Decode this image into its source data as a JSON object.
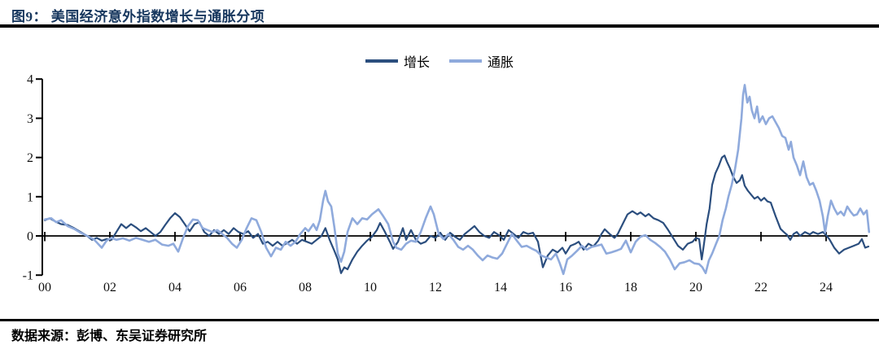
{
  "figure": {
    "title": "图9： 美国经济意外指数增长与通胀分项",
    "source": "数据来源：彭博、东吴证券研究所"
  },
  "colors": {
    "title": "#17375E",
    "growth": "#2B4E7E",
    "inflation": "#8FAADC",
    "axis": "#000000"
  },
  "chart_data": {
    "type": "line",
    "title": "美国经济意外指数增长与通胀分项",
    "legend": [
      "增长",
      "通胀"
    ],
    "legend_position": "top-center",
    "grid": false,
    "xlabel": "",
    "ylabel": "",
    "ylim": [
      -1,
      4
    ],
    "x_range": [
      2000,
      2025.4
    ],
    "y_ticks": [
      4,
      3,
      2,
      1,
      0,
      -1
    ],
    "x_ticks": [
      "00",
      "02",
      "04",
      "06",
      "08",
      "10",
      "12",
      "14",
      "16",
      "18",
      "20",
      "22",
      "24"
    ],
    "x_tick_years": [
      2000,
      2002,
      2004,
      2006,
      2008,
      2010,
      2012,
      2014,
      2016,
      2018,
      2020,
      2022,
      2024
    ],
    "series": [
      {
        "name": "增长",
        "color": "#2B4E7E",
        "x": [
          2000.0,
          2000.15,
          2000.3,
          2000.5,
          2000.7,
          2000.9,
          2001.1,
          2001.3,
          2001.45,
          2001.6,
          2001.75,
          2001.9,
          2002.05,
          2002.2,
          2002.35,
          2002.5,
          2002.65,
          2002.8,
          2002.95,
          2003.1,
          2003.25,
          2003.4,
          2003.55,
          2003.7,
          2003.85,
          2004.0,
          2004.15,
          2004.3,
          2004.45,
          2004.6,
          2004.75,
          2004.9,
          2005.05,
          2005.2,
          2005.35,
          2005.5,
          2005.65,
          2005.8,
          2005.95,
          2006.1,
          2006.25,
          2006.4,
          2006.55,
          2006.7,
          2006.85,
          2007.0,
          2007.15,
          2007.3,
          2007.45,
          2007.6,
          2007.75,
          2007.9,
          2008.05,
          2008.2,
          2008.35,
          2008.5,
          2008.62,
          2008.75,
          2008.88,
          2009.0,
          2009.1,
          2009.2,
          2009.3,
          2009.45,
          2009.6,
          2009.75,
          2009.9,
          2010.05,
          2010.2,
          2010.3,
          2010.45,
          2010.6,
          2010.7,
          2010.85,
          2011.0,
          2011.1,
          2011.25,
          2011.4,
          2011.55,
          2011.7,
          2011.85,
          2012.0,
          2012.15,
          2012.3,
          2012.45,
          2012.6,
          2012.75,
          2012.9,
          2013.05,
          2013.2,
          2013.35,
          2013.5,
          2013.65,
          2013.8,
          2013.95,
          2014.1,
          2014.25,
          2014.4,
          2014.55,
          2014.7,
          2014.85,
          2015.0,
          2015.15,
          2015.3,
          2015.45,
          2015.6,
          2015.75,
          2015.9,
          2016.0,
          2016.15,
          2016.3,
          2016.4,
          2016.55,
          2016.7,
          2016.85,
          2017.0,
          2017.1,
          2017.2,
          2017.35,
          2017.5,
          2017.6,
          2017.75,
          2017.9,
          2018.05,
          2018.2,
          2018.3,
          2018.45,
          2018.55,
          2018.7,
          2018.85,
          2019.0,
          2019.15,
          2019.3,
          2019.45,
          2019.6,
          2019.75,
          2019.9,
          2020.0,
          2020.1,
          2020.18,
          2020.25,
          2020.33,
          2020.42,
          2020.5,
          2020.6,
          2020.7,
          2020.8,
          2020.88,
          2020.95,
          2021.05,
          2021.15,
          2021.25,
          2021.35,
          2021.42,
          2021.5,
          2021.6,
          2021.7,
          2021.8,
          2021.9,
          2022.0,
          2022.1,
          2022.2,
          2022.3,
          2022.45,
          2022.6,
          2022.7,
          2022.8,
          2022.9,
          2023.0,
          2023.1,
          2023.2,
          2023.35,
          2023.5,
          2023.6,
          2023.75,
          2023.9,
          2024.0,
          2024.1,
          2024.25,
          2024.4,
          2024.55,
          2024.7,
          2024.85,
          2025.0,
          2025.1,
          2025.2,
          2025.3
        ],
        "y": [
          0.4,
          0.45,
          0.38,
          0.3,
          0.28,
          0.2,
          0.1,
          0.0,
          -0.1,
          -0.05,
          -0.12,
          -0.08,
          -0.1,
          0.1,
          0.3,
          0.2,
          0.3,
          0.22,
          0.12,
          0.2,
          0.1,
          0.0,
          0.1,
          0.28,
          0.45,
          0.58,
          0.48,
          0.3,
          0.12,
          0.3,
          0.35,
          0.1,
          0.0,
          0.15,
          0.05,
          0.15,
          0.05,
          0.2,
          0.1,
          0.05,
          0.12,
          -0.05,
          0.05,
          -0.2,
          -0.15,
          -0.25,
          -0.15,
          -0.25,
          -0.18,
          -0.1,
          -0.2,
          -0.1,
          -0.15,
          -0.2,
          -0.1,
          0.0,
          0.2,
          -0.1,
          -0.35,
          -0.6,
          -0.95,
          -0.8,
          -0.85,
          -0.6,
          -0.4,
          -0.25,
          -0.12,
          -0.02,
          0.15,
          0.33,
          0.1,
          -0.15,
          -0.33,
          -0.15,
          0.2,
          -0.1,
          0.15,
          -0.1,
          -0.2,
          -0.15,
          0.0,
          -0.05,
          0.08,
          -0.1,
          0.08,
          -0.02,
          -0.1,
          0.05,
          0.15,
          0.25,
          0.1,
          0.0,
          -0.05,
          0.1,
          0.02,
          -0.1,
          0.15,
          0.05,
          -0.05,
          0.1,
          0.05,
          0.08,
          -0.15,
          -0.8,
          -0.5,
          -0.35,
          -0.42,
          -0.3,
          -0.45,
          -0.25,
          -0.2,
          -0.15,
          -0.35,
          -0.2,
          -0.27,
          -0.12,
          0.05,
          0.17,
          0.05,
          -0.05,
          0.05,
          0.3,
          0.55,
          0.63,
          0.55,
          0.6,
          0.5,
          0.56,
          0.45,
          0.4,
          0.33,
          0.15,
          -0.05,
          -0.25,
          -0.35,
          -0.2,
          -0.15,
          -0.05,
          -0.08,
          -0.6,
          -0.2,
          0.3,
          0.7,
          1.3,
          1.6,
          1.78,
          2.0,
          2.05,
          1.9,
          1.72,
          1.5,
          1.35,
          1.42,
          1.55,
          1.28,
          1.15,
          1.05,
          0.95,
          1.0,
          0.9,
          0.97,
          0.88,
          0.85,
          0.5,
          0.18,
          0.1,
          0.03,
          -0.1,
          0.05,
          0.1,
          0.0,
          0.1,
          0.04,
          0.1,
          0.05,
          0.1,
          0.02,
          -0.08,
          -0.3,
          -0.45,
          -0.35,
          -0.3,
          -0.25,
          -0.2,
          -0.08,
          -0.3,
          -0.27
        ]
      },
      {
        "name": "通胀",
        "color": "#8FAADC",
        "x": [
          2000.0,
          2000.2,
          2000.35,
          2000.5,
          2000.7,
          2000.9,
          2001.1,
          2001.3,
          2001.5,
          2001.75,
          2001.9,
          2002.05,
          2002.2,
          2002.4,
          2002.6,
          2002.8,
          2003.0,
          2003.2,
          2003.4,
          2003.6,
          2003.8,
          2003.95,
          2004.1,
          2004.25,
          2004.4,
          2004.55,
          2004.7,
          2004.85,
          2005.0,
          2005.15,
          2005.3,
          2005.45,
          2005.6,
          2005.75,
          2005.9,
          2006.05,
          2006.2,
          2006.35,
          2006.5,
          2006.65,
          2006.8,
          2006.95,
          2007.1,
          2007.25,
          2007.4,
          2007.55,
          2007.7,
          2007.85,
          2008.0,
          2008.1,
          2008.25,
          2008.35,
          2008.45,
          2008.55,
          2008.62,
          2008.7,
          2008.8,
          2008.9,
          2009.0,
          2009.1,
          2009.2,
          2009.3,
          2009.45,
          2009.6,
          2009.75,
          2009.9,
          2010.05,
          2010.25,
          2010.4,
          2010.55,
          2010.7,
          2010.8,
          2010.95,
          2011.1,
          2011.25,
          2011.4,
          2011.55,
          2011.7,
          2011.85,
          2011.95,
          2012.1,
          2012.25,
          2012.4,
          2012.55,
          2012.7,
          2012.85,
          2013.0,
          2013.15,
          2013.3,
          2013.45,
          2013.6,
          2013.75,
          2013.9,
          2014.05,
          2014.2,
          2014.35,
          2014.5,
          2014.65,
          2014.8,
          2014.95,
          2015.1,
          2015.25,
          2015.4,
          2015.55,
          2015.7,
          2015.82,
          2015.93,
          2016.05,
          2016.2,
          2016.35,
          2016.5,
          2016.65,
          2016.8,
          2016.95,
          2017.1,
          2017.25,
          2017.4,
          2017.55,
          2017.7,
          2017.85,
          2018.0,
          2018.15,
          2018.3,
          2018.45,
          2018.6,
          2018.75,
          2018.9,
          2019.05,
          2019.2,
          2019.35,
          2019.5,
          2019.65,
          2019.8,
          2019.95,
          2020.1,
          2020.2,
          2020.3,
          2020.4,
          2020.5,
          2020.62,
          2020.72,
          2020.82,
          2020.92,
          2021.0,
          2021.1,
          2021.2,
          2021.3,
          2021.4,
          2021.45,
          2021.5,
          2021.58,
          2021.65,
          2021.72,
          2021.8,
          2021.88,
          2021.95,
          2022.05,
          2022.15,
          2022.25,
          2022.35,
          2022.45,
          2022.55,
          2022.65,
          2022.75,
          2022.85,
          2022.92,
          2023.0,
          2023.1,
          2023.2,
          2023.3,
          2023.4,
          2023.5,
          2023.6,
          2023.7,
          2023.8,
          2023.9,
          2023.97,
          2024.05,
          2024.15,
          2024.25,
          2024.35,
          2024.45,
          2024.55,
          2024.65,
          2024.75,
          2024.85,
          2024.95,
          2025.05,
          2025.15,
          2025.25,
          2025.32
        ],
        "y": [
          0.42,
          0.45,
          0.35,
          0.4,
          0.25,
          0.18,
          0.08,
          0.0,
          -0.08,
          -0.3,
          -0.12,
          -0.05,
          -0.1,
          -0.06,
          -0.12,
          -0.05,
          -0.1,
          -0.15,
          -0.1,
          -0.22,
          -0.25,
          -0.2,
          -0.4,
          -0.05,
          0.25,
          0.42,
          0.4,
          0.2,
          0.15,
          0.1,
          0.15,
          0.05,
          -0.05,
          -0.2,
          -0.3,
          -0.1,
          0.2,
          0.45,
          0.4,
          0.1,
          -0.3,
          -0.52,
          -0.3,
          -0.35,
          -0.15,
          -0.25,
          -0.15,
          0.05,
          0.2,
          0.12,
          0.3,
          0.15,
          0.4,
          0.9,
          1.15,
          0.88,
          0.75,
          0.2,
          -0.45,
          -0.66,
          -0.4,
          0.1,
          0.45,
          0.3,
          0.45,
          0.42,
          0.55,
          0.68,
          0.5,
          0.3,
          -0.15,
          -0.3,
          -0.35,
          -0.2,
          -0.12,
          -0.15,
          0.1,
          0.45,
          0.75,
          0.55,
          0.05,
          -0.08,
          0.05,
          -0.1,
          -0.28,
          -0.35,
          -0.25,
          -0.35,
          -0.5,
          -0.62,
          -0.5,
          -0.55,
          -0.58,
          -0.45,
          -0.2,
          0.05,
          -0.12,
          -0.28,
          -0.25,
          -0.32,
          -0.38,
          -0.5,
          -0.55,
          -0.6,
          -0.45,
          -0.7,
          -0.97,
          -0.6,
          -0.5,
          -0.38,
          -0.25,
          -0.35,
          -0.28,
          -0.25,
          -0.22,
          -0.45,
          -0.42,
          -0.38,
          -0.33,
          -0.12,
          -0.42,
          -0.15,
          -0.02,
          0.02,
          -0.1,
          -0.18,
          -0.28,
          -0.4,
          -0.6,
          -0.85,
          -0.7,
          -0.67,
          -0.62,
          -0.7,
          -0.72,
          -0.8,
          -0.95,
          -0.62,
          -0.45,
          -0.2,
          0.0,
          0.4,
          0.7,
          1.0,
          1.3,
          1.7,
          2.2,
          3.0,
          3.6,
          3.85,
          3.4,
          3.55,
          3.2,
          3.0,
          3.3,
          2.9,
          3.05,
          2.85,
          3.0,
          3.05,
          2.9,
          2.75,
          2.55,
          2.5,
          2.2,
          2.4,
          2.0,
          1.8,
          1.55,
          1.9,
          1.5,
          1.3,
          1.35,
          1.15,
          0.9,
          0.5,
          0.08,
          0.5,
          0.9,
          0.7,
          0.55,
          0.62,
          0.52,
          0.75,
          0.62,
          0.52,
          0.55,
          0.7,
          0.55,
          0.65,
          0.1
        ]
      }
    ]
  }
}
